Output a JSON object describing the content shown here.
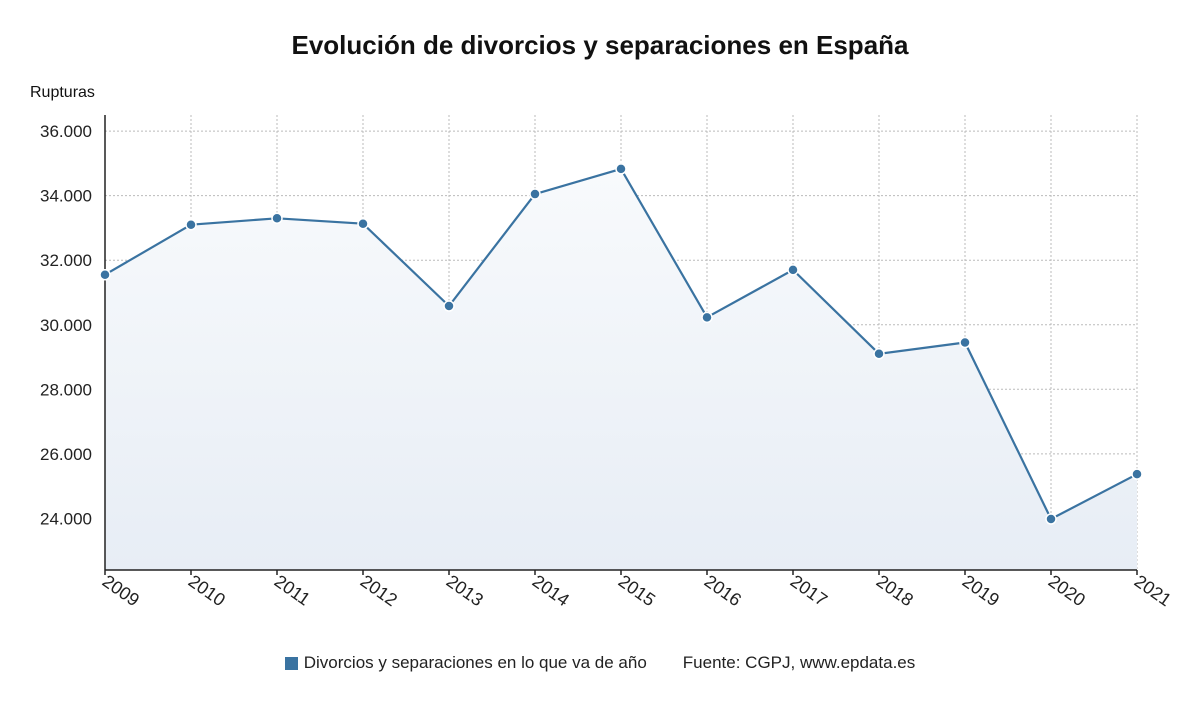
{
  "chart_data": {
    "type": "line",
    "title": "Evolución de divorcios y separaciones en España",
    "ylabel": "Rupturas",
    "x": [
      "2009",
      "2010",
      "2011",
      "2012",
      "2013",
      "2014",
      "2015",
      "2016",
      "2017",
      "2018",
      "2019",
      "2020",
      "2021"
    ],
    "series": [
      {
        "name": "Divorcios y separaciones en lo que va de año",
        "values": [
          31550,
          33100,
          33300,
          33130,
          30580,
          34050,
          34830,
          30230,
          31700,
          29100,
          29450,
          23980,
          25370
        ]
      }
    ],
    "ylim": [
      22400,
      36500
    ],
    "yticks": [
      24000,
      26000,
      28000,
      30000,
      32000,
      34000,
      36000
    ],
    "ytick_labels": [
      "24.000",
      "26.000",
      "28.000",
      "30.000",
      "32.000",
      "34.000",
      "36.000"
    ],
    "grid": true,
    "legend_position": "bottom",
    "colors": {
      "line": "#3a73a1",
      "fill_top": "#f8fafc",
      "fill_bottom": "#e7edf5",
      "grid": "#bbbbbb"
    }
  },
  "source": "Fuente: CGPJ, www.epdata.es"
}
